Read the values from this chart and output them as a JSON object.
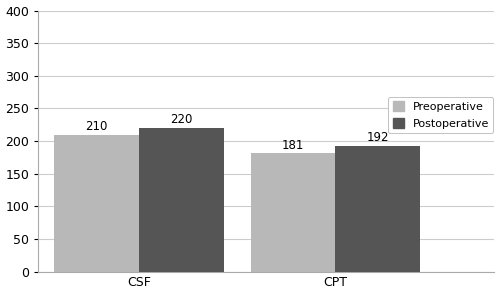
{
  "categories": [
    "CSF",
    "CPT"
  ],
  "preoperative_values": [
    210,
    181
  ],
  "postoperative_values": [
    220,
    192
  ],
  "preoperative_color": "#b8b8b8",
  "postoperative_color": "#555555",
  "ylim": [
    0,
    400
  ],
  "yticks": [
    0,
    50,
    100,
    150,
    200,
    250,
    300,
    350,
    400
  ],
  "bar_width": 0.32,
  "legend_labels": [
    "Preoperative",
    "Postoperative"
  ],
  "label_fontsize": 8,
  "tick_fontsize": 9,
  "value_fontsize": 8.5,
  "background_color": "#ffffff",
  "group_centers": [
    0.38,
    1.12
  ],
  "xlim": [
    0.0,
    1.72
  ]
}
